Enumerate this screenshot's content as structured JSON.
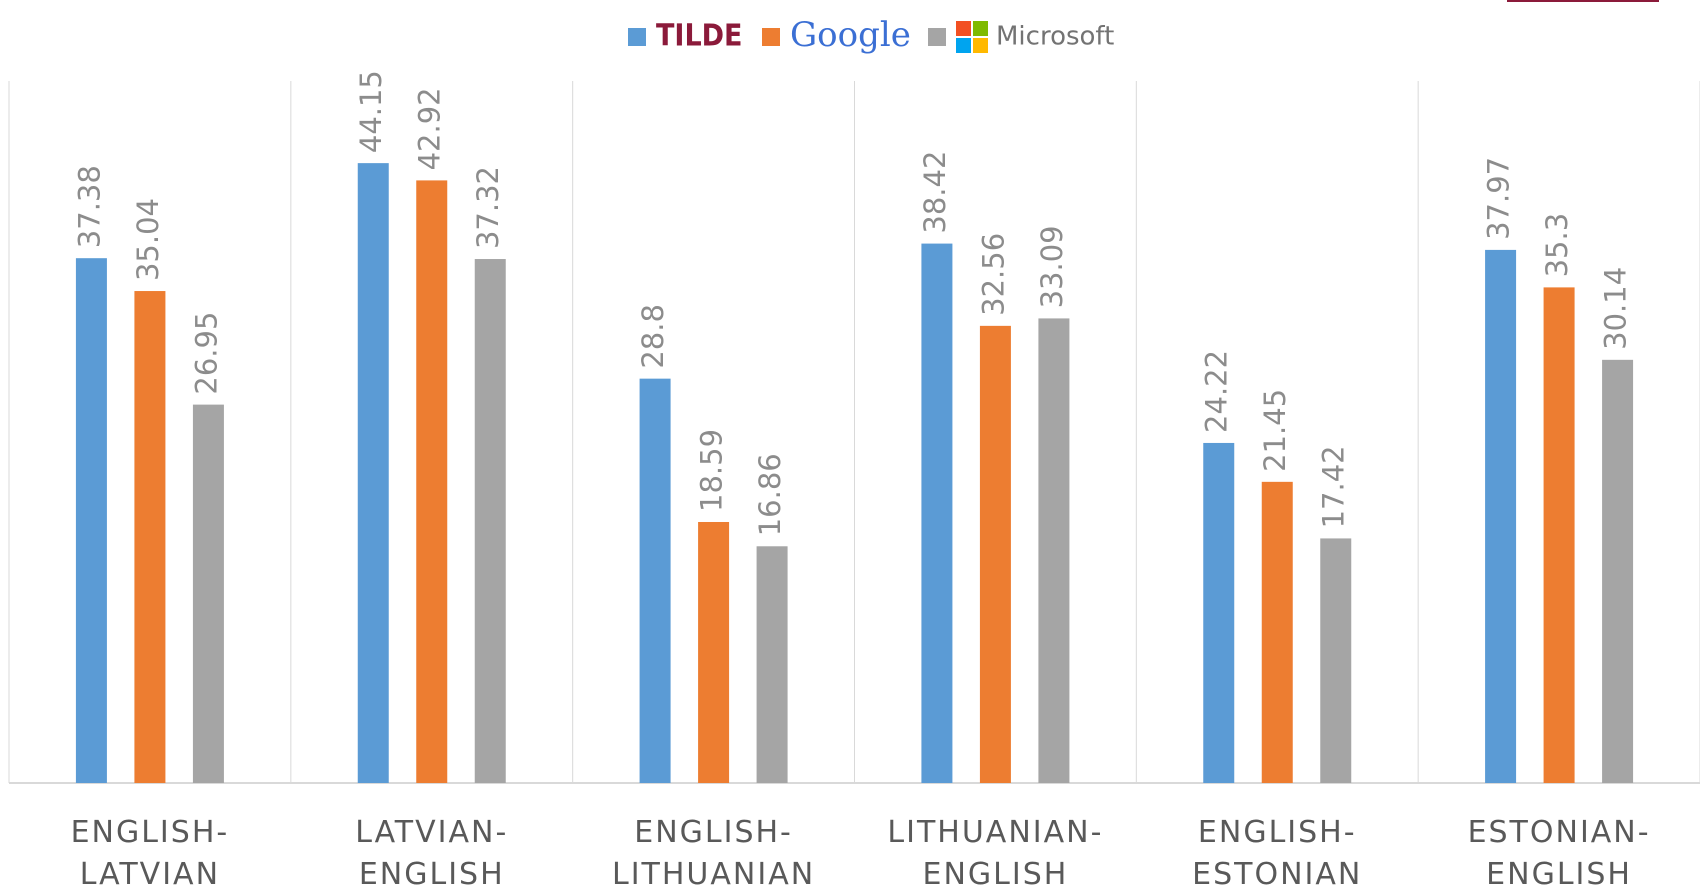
{
  "chart_data": {
    "type": "bar",
    "categories": [
      "ENGLISH-LATVIAN",
      "LATVIAN-ENGLISH",
      "ENGLISH-LITHUANIAN",
      "LITHUANIAN-ENGLISH",
      "ENGLISH-ESTONIAN",
      "ESTONIAN-ENGLISH"
    ],
    "series": [
      {
        "name": "TILDE",
        "color": "#5b9bd5",
        "values": [
          37.38,
          44.15,
          28.8,
          38.42,
          24.22,
          37.97
        ]
      },
      {
        "name": "Google",
        "color": "#ed7d31",
        "values": [
          35.04,
          42.92,
          18.59,
          32.56,
          21.45,
          35.3
        ]
      },
      {
        "name": "Microsoft",
        "color": "#a5a5a5",
        "values": [
          26.95,
          37.32,
          16.86,
          33.09,
          17.42,
          30.14
        ]
      }
    ],
    "ylim": [
      0,
      50
    ],
    "legend": "top"
  }
}
